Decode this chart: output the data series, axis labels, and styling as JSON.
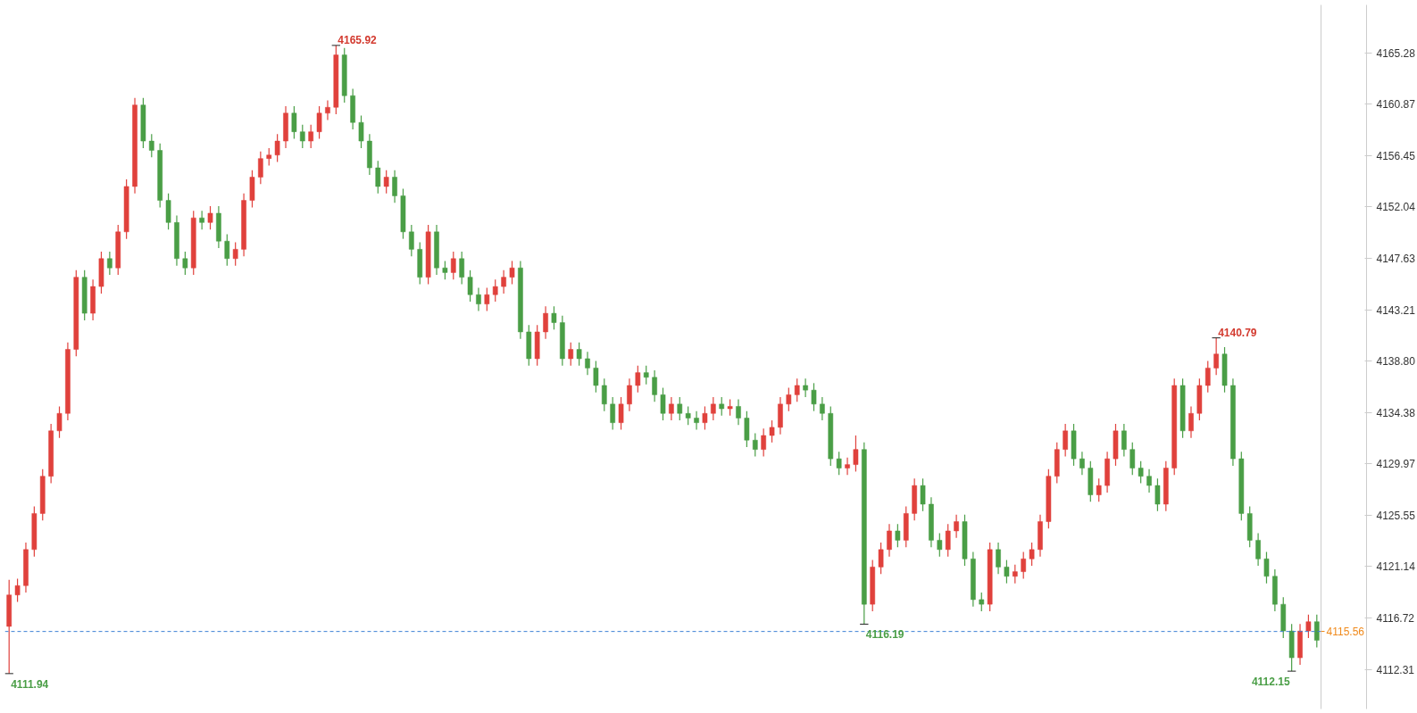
{
  "chart_data": {
    "type": "candlestick",
    "categories": [
      null,
      null,
      null,
      null,
      null,
      null,
      null,
      null,
      null,
      null,
      null,
      null,
      null,
      null,
      null,
      null,
      null,
      null,
      null,
      null,
      null,
      null,
      null,
      null,
      null,
      null,
      null,
      null,
      null,
      null,
      null,
      null,
      null,
      null,
      null,
      null,
      null,
      null,
      null,
      null,
      null,
      null,
      null,
      null,
      null,
      null,
      null,
      null,
      null,
      null,
      null,
      null,
      null,
      null,
      null,
      null,
      null,
      null,
      null,
      null,
      null,
      null,
      null,
      null,
      null,
      null,
      null,
      null,
      null,
      null,
      null,
      null,
      null,
      null,
      null,
      null,
      null,
      null,
      null,
      null,
      null,
      null,
      null,
      null,
      null,
      null,
      null,
      null,
      null,
      null,
      null,
      null,
      null,
      null,
      null,
      null,
      null,
      null,
      null,
      null,
      null,
      null,
      null,
      null,
      null,
      null,
      null,
      null,
      null,
      null,
      null,
      null,
      null,
      null,
      null,
      null,
      null,
      null,
      null,
      null,
      null,
      null,
      null,
      null,
      null,
      null,
      null,
      null,
      null,
      null,
      null,
      null,
      null,
      null,
      null,
      null,
      null,
      null,
      null,
      null,
      null,
      null,
      null,
      null,
      null,
      null,
      null,
      null,
      null,
      null,
      null,
      null,
      null,
      null,
      null,
      null,
      null
    ],
    "ohlc": [
      [
        4116.0,
        4120.0,
        4111.94,
        4118.7
      ],
      [
        4118.7,
        4120.1,
        4118.1,
        4119.5
      ],
      [
        4119.5,
        4123.2,
        4118.9,
        4122.6
      ],
      [
        4122.6,
        4126.3,
        4122.0,
        4125.7
      ],
      [
        4125.7,
        4129.5,
        4125.1,
        4128.9
      ],
      [
        4128.9,
        4133.4,
        4128.3,
        4132.8
      ],
      [
        4132.8,
        4134.9,
        4132.2,
        4134.3
      ],
      [
        4134.3,
        4140.4,
        4133.7,
        4139.8
      ],
      [
        4139.8,
        4146.6,
        4139.2,
        4146.0
      ],
      [
        4146.0,
        4146.6,
        4142.3,
        4142.9
      ],
      [
        4142.9,
        4145.8,
        4142.3,
        4145.2
      ],
      [
        4145.2,
        4148.2,
        4144.6,
        4147.6
      ],
      [
        4147.6,
        4148.2,
        4146.2,
        4146.8
      ],
      [
        4146.8,
        4150.5,
        4146.2,
        4149.9
      ],
      [
        4149.9,
        4154.4,
        4149.3,
        4153.8
      ],
      [
        4153.8,
        4161.4,
        4153.2,
        4160.8
      ],
      [
        4160.8,
        4161.4,
        4157.1,
        4157.7
      ],
      [
        4157.7,
        4158.3,
        4156.3,
        4156.9
      ],
      [
        4156.9,
        4157.5,
        4152.0,
        4152.6
      ],
      [
        4152.6,
        4153.2,
        4150.1,
        4150.7
      ],
      [
        4150.7,
        4151.3,
        4147.0,
        4147.6
      ],
      [
        4147.6,
        4148.2,
        4146.2,
        4146.8
      ],
      [
        4146.8,
        4151.7,
        4146.2,
        4151.1
      ],
      [
        4151.1,
        4151.7,
        4150.1,
        4150.7
      ],
      [
        4150.7,
        4152.1,
        4150.1,
        4151.5
      ],
      [
        4151.5,
        4152.1,
        4148.5,
        4149.1
      ],
      [
        4149.1,
        4149.7,
        4147.0,
        4147.6
      ],
      [
        4147.6,
        4149.0,
        4147.0,
        4148.4
      ],
      [
        4148.4,
        4153.2,
        4147.8,
        4152.6
      ],
      [
        4152.6,
        4155.2,
        4152.0,
        4154.6
      ],
      [
        4154.6,
        4156.8,
        4154.0,
        4156.2
      ],
      [
        4156.2,
        4157.1,
        4155.6,
        4156.5
      ],
      [
        4156.5,
        4158.3,
        4155.9,
        4157.7
      ],
      [
        4157.7,
        4160.7,
        4157.1,
        4160.1
      ],
      [
        4160.1,
        4160.7,
        4157.9,
        4158.5
      ],
      [
        4158.5,
        4159.1,
        4157.1,
        4157.7
      ],
      [
        4157.7,
        4159.1,
        4157.1,
        4158.5
      ],
      [
        4158.5,
        4160.7,
        4157.9,
        4160.1
      ],
      [
        4160.1,
        4161.2,
        4159.5,
        4160.6
      ],
      [
        4160.6,
        4165.92,
        4160.0,
        4165.1
      ],
      [
        4165.1,
        4165.7,
        4161.0,
        4161.6
      ],
      [
        4161.6,
        4162.2,
        4158.7,
        4159.3
      ],
      [
        4159.3,
        4159.9,
        4157.1,
        4157.7
      ],
      [
        4157.7,
        4158.3,
        4154.8,
        4155.4
      ],
      [
        4155.4,
        4156.0,
        4153.2,
        4153.8
      ],
      [
        4153.8,
        4155.2,
        4153.2,
        4154.6
      ],
      [
        4154.6,
        4155.2,
        4152.4,
        4153.0
      ],
      [
        4153.0,
        4153.6,
        4149.3,
        4149.9
      ],
      [
        4149.9,
        4150.5,
        4147.8,
        4148.4
      ],
      [
        4148.4,
        4149.0,
        4145.4,
        4146.0
      ],
      [
        4146.0,
        4150.5,
        4145.4,
        4149.9
      ],
      [
        4149.9,
        4150.5,
        4146.2,
        4146.8
      ],
      [
        4146.8,
        4147.4,
        4145.8,
        4146.4
      ],
      [
        4146.4,
        4148.2,
        4145.8,
        4147.6
      ],
      [
        4147.6,
        4148.2,
        4145.4,
        4146.0
      ],
      [
        4146.0,
        4146.6,
        4143.9,
        4144.5
      ],
      [
        4144.5,
        4145.1,
        4143.1,
        4143.7
      ],
      [
        4143.7,
        4145.1,
        4143.1,
        4144.5
      ],
      [
        4144.5,
        4145.8,
        4143.9,
        4145.2
      ],
      [
        4145.2,
        4146.6,
        4144.6,
        4146.0
      ],
      [
        4146.0,
        4147.4,
        4145.4,
        4146.8
      ],
      [
        4146.8,
        4147.4,
        4140.7,
        4141.3
      ],
      [
        4141.3,
        4141.9,
        4138.4,
        4139.0
      ],
      [
        4139.0,
        4141.9,
        4138.4,
        4141.3
      ],
      [
        4141.3,
        4143.5,
        4140.7,
        4142.9
      ],
      [
        4142.9,
        4143.5,
        4141.5,
        4142.1
      ],
      [
        4142.1,
        4142.7,
        4138.4,
        4139.0
      ],
      [
        4139.0,
        4140.4,
        4138.4,
        4139.8
      ],
      [
        4139.8,
        4140.4,
        4138.4,
        4139.0
      ],
      [
        4139.0,
        4139.6,
        4137.6,
        4138.2
      ],
      [
        4138.2,
        4138.8,
        4136.1,
        4136.7
      ],
      [
        4136.7,
        4137.3,
        4134.5,
        4135.1
      ],
      [
        4135.1,
        4135.7,
        4132.9,
        4133.5
      ],
      [
        4133.5,
        4135.7,
        4132.9,
        4135.1
      ],
      [
        4135.1,
        4137.3,
        4134.5,
        4136.7
      ],
      [
        4136.7,
        4138.4,
        4136.1,
        4137.8
      ],
      [
        4137.8,
        4138.4,
        4136.8,
        4137.4
      ],
      [
        4137.4,
        4138.0,
        4135.3,
        4135.9
      ],
      [
        4135.9,
        4136.5,
        4133.7,
        4134.3
      ],
      [
        4134.3,
        4135.7,
        4133.7,
        4135.1
      ],
      [
        4135.1,
        4135.7,
        4133.7,
        4134.3
      ],
      [
        4134.3,
        4134.9,
        4133.3,
        4133.9
      ],
      [
        4133.9,
        4134.5,
        4132.9,
        4133.5
      ],
      [
        4133.5,
        4134.9,
        4132.9,
        4134.3
      ],
      [
        4134.3,
        4135.7,
        4133.7,
        4135.1
      ],
      [
        4135.1,
        4135.7,
        4134.1,
        4134.7
      ],
      [
        4134.7,
        4135.5,
        4134.1,
        4134.9
      ],
      [
        4134.9,
        4135.5,
        4133.3,
        4133.9
      ],
      [
        4133.9,
        4134.5,
        4131.4,
        4132.0
      ],
      [
        4132.0,
        4132.6,
        4130.6,
        4131.2
      ],
      [
        4131.2,
        4133.0,
        4130.6,
        4132.4
      ],
      [
        4132.4,
        4133.7,
        4131.8,
        4133.1
      ],
      [
        4133.1,
        4135.7,
        4132.5,
        4135.1
      ],
      [
        4135.1,
        4136.5,
        4134.5,
        4135.9
      ],
      [
        4135.9,
        4137.3,
        4135.3,
        4136.7
      ],
      [
        4136.7,
        4137.3,
        4135.7,
        4136.3
      ],
      [
        4136.3,
        4136.9,
        4134.5,
        4135.1
      ],
      [
        4135.1,
        4135.7,
        4133.7,
        4134.3
      ],
      [
        4134.3,
        4134.9,
        4129.8,
        4130.4
      ],
      [
        4130.4,
        4131.0,
        4129.0,
        4129.6
      ],
      [
        4129.6,
        4130.5,
        4129.0,
        4129.9
      ],
      [
        4129.9,
        4132.4,
        4129.3,
        4131.2
      ],
      [
        4131.2,
        4131.8,
        4116.19,
        4117.9
      ],
      [
        4117.9,
        4121.7,
        4117.3,
        4121.1
      ],
      [
        4121.1,
        4123.2,
        4120.5,
        4122.6
      ],
      [
        4122.6,
        4124.8,
        4122.0,
        4124.2
      ],
      [
        4124.2,
        4124.8,
        4122.8,
        4123.4
      ],
      [
        4123.4,
        4126.3,
        4122.8,
        4125.7
      ],
      [
        4125.7,
        4128.7,
        4125.1,
        4128.1
      ],
      [
        4128.1,
        4128.7,
        4125.9,
        4126.5
      ],
      [
        4126.5,
        4127.1,
        4122.8,
        4123.4
      ],
      [
        4123.4,
        4124.0,
        4122.0,
        4122.6
      ],
      [
        4122.6,
        4124.8,
        4122.0,
        4124.2
      ],
      [
        4124.2,
        4125.6,
        4123.6,
        4125.0
      ],
      [
        4125.0,
        4125.6,
        4121.2,
        4121.8
      ],
      [
        4121.8,
        4122.4,
        4117.7,
        4118.3
      ],
      [
        4118.3,
        4118.9,
        4117.3,
        4117.9
      ],
      [
        4117.9,
        4123.2,
        4117.3,
        4122.6
      ],
      [
        4122.6,
        4123.2,
        4120.5,
        4121.1
      ],
      [
        4121.1,
        4121.7,
        4119.7,
        4120.3
      ],
      [
        4120.3,
        4121.3,
        4119.7,
        4120.7
      ],
      [
        4120.7,
        4122.4,
        4120.1,
        4121.8
      ],
      [
        4121.8,
        4123.2,
        4121.2,
        4122.6
      ],
      [
        4122.6,
        4125.6,
        4122.0,
        4125.0
      ],
      [
        4125.0,
        4129.5,
        4124.4,
        4128.9
      ],
      [
        4128.9,
        4131.8,
        4128.3,
        4131.2
      ],
      [
        4131.2,
        4133.4,
        4130.6,
        4132.8
      ],
      [
        4132.8,
        4133.4,
        4129.8,
        4130.4
      ],
      [
        4130.4,
        4131.0,
        4129.0,
        4129.6
      ],
      [
        4129.6,
        4130.2,
        4126.7,
        4127.3
      ],
      [
        4127.3,
        4128.7,
        4126.7,
        4128.1
      ],
      [
        4128.1,
        4131.0,
        4127.5,
        4130.4
      ],
      [
        4130.4,
        4133.4,
        4129.8,
        4132.8
      ],
      [
        4132.8,
        4133.4,
        4130.6,
        4131.2
      ],
      [
        4131.2,
        4131.8,
        4129.0,
        4129.6
      ],
      [
        4129.6,
        4130.2,
        4128.3,
        4128.9
      ],
      [
        4128.9,
        4129.5,
        4127.5,
        4128.1
      ],
      [
        4128.1,
        4128.7,
        4125.9,
        4126.5
      ],
      [
        4126.5,
        4130.2,
        4125.9,
        4129.6
      ],
      [
        4129.6,
        4137.3,
        4129.0,
        4136.7
      ],
      [
        4136.7,
        4137.3,
        4132.2,
        4132.8
      ],
      [
        4132.8,
        4134.9,
        4132.2,
        4134.3
      ],
      [
        4134.3,
        4137.3,
        4133.7,
        4136.7
      ],
      [
        4136.7,
        4138.8,
        4136.1,
        4138.2
      ],
      [
        4138.2,
        4140.79,
        4137.6,
        4139.4
      ],
      [
        4139.4,
        4140.0,
        4136.1,
        4136.7
      ],
      [
        4136.7,
        4137.3,
        4129.8,
        4130.4
      ],
      [
        4130.4,
        4131.0,
        4125.1,
        4125.7
      ],
      [
        4125.7,
        4126.3,
        4122.8,
        4123.4
      ],
      [
        4123.4,
        4124.0,
        4121.2,
        4121.8
      ],
      [
        4121.8,
        4122.4,
        4119.7,
        4120.3
      ],
      [
        4120.3,
        4120.9,
        4117.3,
        4117.9
      ],
      [
        4117.9,
        4118.5,
        4115.0,
        4115.6
      ],
      [
        4115.6,
        4116.2,
        4112.15,
        4113.3
      ],
      [
        4113.3,
        4116.2,
        4112.7,
        4115.6
      ],
      [
        4115.6,
        4117.0,
        4115.0,
        4116.4
      ],
      [
        4116.4,
        4117.0,
        4114.2,
        4114.8
      ]
    ],
    "ylim": [
      4108.9,
      4169.4
    ],
    "yticks": [
      4112.31,
      4116.72,
      4121.14,
      4125.55,
      4129.97,
      4134.38,
      {
        "value": 4138.8,
        "label": "4138.80"
      },
      4143.21,
      4147.63,
      4152.04,
      4156.45,
      4160.87,
      4165.28
    ],
    "tick_labels": "y",
    "grid": false,
    "ref_lines": [
      {
        "axis": "y",
        "value": 4115.56,
        "label": "4115.56",
        "color": "#3b7fd6",
        "line_style": "dashed"
      }
    ],
    "annotations": [
      "4165.92",
      "4111.94",
      "4116.19",
      "4140.79",
      "4112.15"
    ]
  }
}
